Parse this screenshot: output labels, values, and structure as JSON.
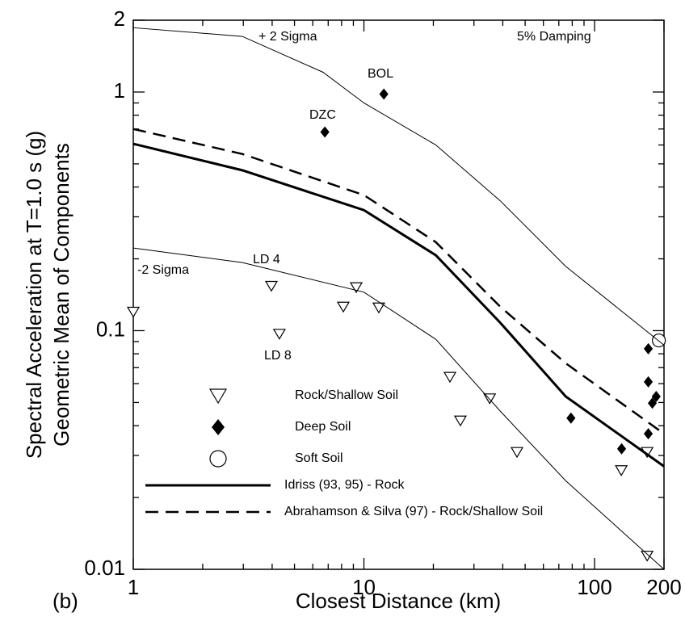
{
  "chart_data": {
    "type": "scatter",
    "xlabel": "Closest Distance (km)",
    "ylabel": [
      "Spectral Acceleration at T=1.0 s (g)",
      "Geometric Mean of Components"
    ],
    "xscale": "log",
    "yscale": "log",
    "xlim": [
      1,
      200
    ],
    "ylim": [
      0.01,
      2
    ],
    "xticks": [
      1,
      10,
      100,
      200
    ],
    "yticks": [
      0.01,
      0.1,
      1,
      2
    ],
    "annotations": [
      "+ 2 Sigma",
      "5% Damping",
      "BOL",
      "DZC",
      "LD 4",
      "-2 Sigma",
      "LD 8",
      "(b)"
    ],
    "series": [
      {
        "name": "Rock/Shallow Soil",
        "marker": "triangle-down",
        "color": "#000000",
        "x": [
          1.0,
          3.97,
          4.3,
          9.26,
          8.14,
          11.6,
          23.6,
          26.2,
          35.1,
          46.1,
          130.6,
          169,
          169
        ],
        "values": [
          0.12,
          0.154,
          0.097,
          0.152,
          0.126,
          0.125,
          0.064,
          0.042,
          0.052,
          0.031,
          0.026,
          0.031,
          0.0114
        ]
      },
      {
        "name": "Deep Soil",
        "marker": "diamond",
        "color": "#000000",
        "x": [
          12.2,
          6.77,
          79,
          131,
          171,
          171,
          171,
          185,
          178
        ],
        "values": [
          0.98,
          0.68,
          0.043,
          0.032,
          0.084,
          0.061,
          0.037,
          0.053,
          0.0497
        ]
      },
      {
        "name": "Soft Soil",
        "marker": "circle",
        "color": "#000000",
        "x": [
          190
        ],
        "values": [
          0.091
        ]
      },
      {
        "name": "Idriss (93, 95) - Rock",
        "line": "solid",
        "width": 3,
        "color": "#000000",
        "x": [
          1,
          2.97,
          10,
          20.5,
          39,
          75,
          200
        ],
        "values": [
          0.607,
          0.47,
          0.32,
          0.207,
          0.108,
          0.053,
          0.027
        ]
      },
      {
        "name": "Abrahamson & Silva (97) - Rock/Shallow Soil",
        "line": "dashed",
        "width": 2.5,
        "color": "#000000",
        "x": [
          1,
          2.97,
          10,
          20.5,
          39,
          75,
          200
        ],
        "values": [
          0.7,
          0.55,
          0.37,
          0.235,
          0.126,
          0.073,
          0.037
        ]
      },
      {
        "line": "solid",
        "width": 1,
        "color": "#000000",
        "x": [
          1,
          2.97,
          6.65,
          10,
          20.5,
          39,
          75,
          200
        ],
        "values": [
          1.86,
          1.71,
          1.21,
          0.9,
          0.6,
          0.35,
          0.186,
          0.087
        ]
      },
      {
        "line": "solid",
        "width": 1,
        "color": "#000000",
        "x": [
          1,
          2.97,
          10,
          20.5,
          39,
          75,
          200
        ],
        "values": [
          0.222,
          0.193,
          0.145,
          0.092,
          0.046,
          0.0235,
          0.01
        ]
      }
    ]
  }
}
